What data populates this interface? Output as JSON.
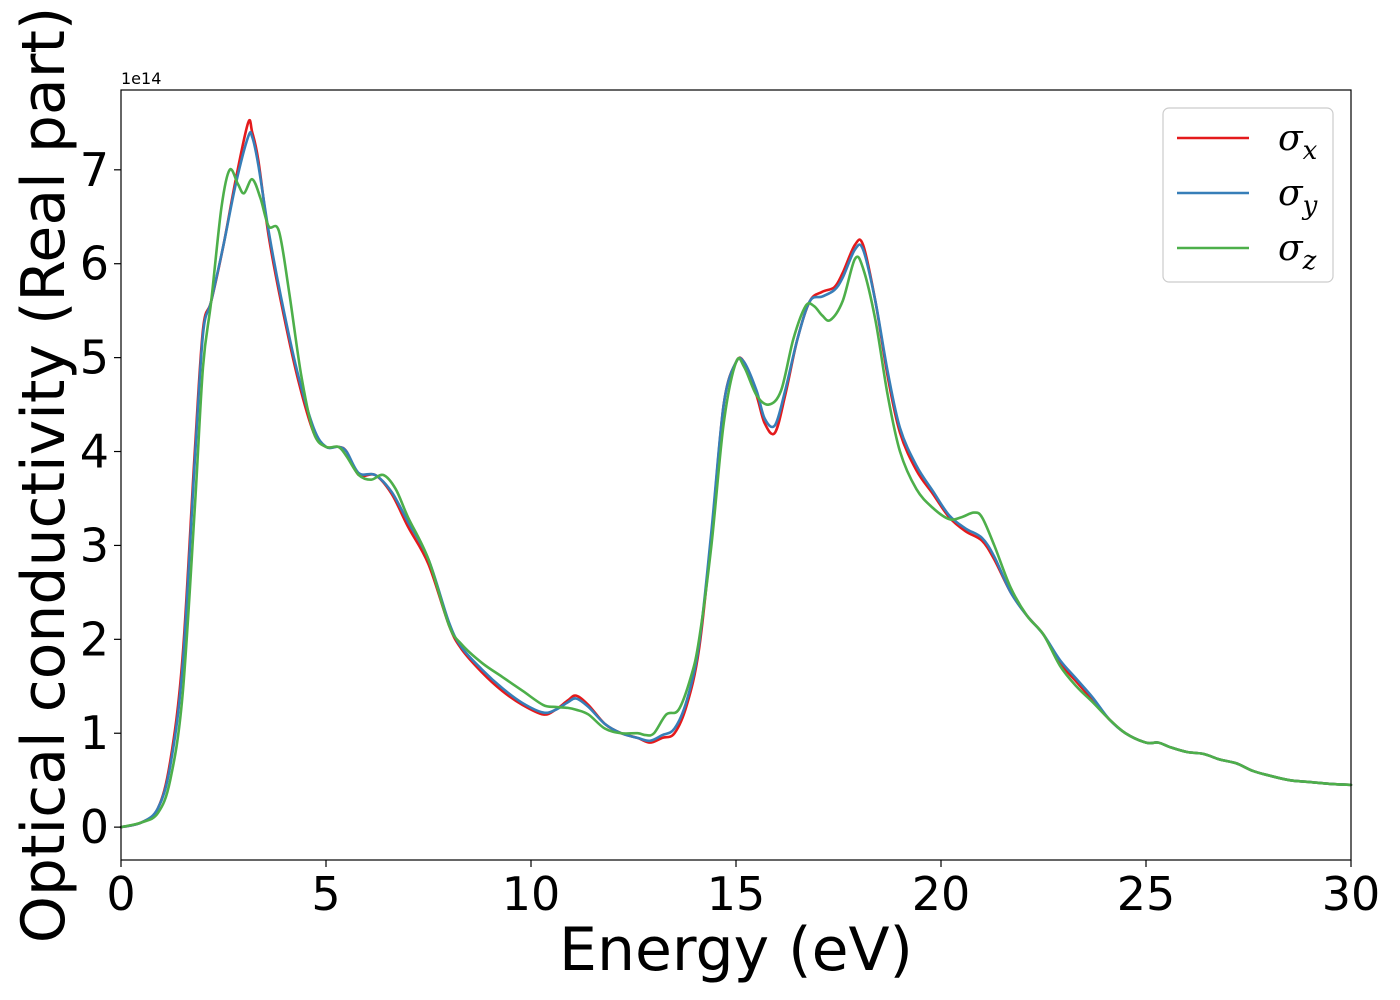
{
  "chart_data": {
    "type": "line",
    "title": "",
    "xlabel": "Energy (eV)",
    "ylabel": "Optical conductivity (Real part)",
    "y_offset_label": "1e14",
    "xlim": [
      0,
      30
    ],
    "ylim": [
      -0.35,
      7.85
    ],
    "xticks": [
      0,
      5,
      10,
      15,
      20,
      25,
      30
    ],
    "xtick_labels": [
      "0",
      "5",
      "10",
      "15",
      "20",
      "25",
      "30"
    ],
    "yticks": [
      0,
      1,
      2,
      3,
      4,
      5,
      6,
      7
    ],
    "ytick_labels": [
      "0",
      "1",
      "2",
      "3",
      "4",
      "5",
      "6",
      "7"
    ],
    "grid": false,
    "legend_position": "top-right",
    "series": [
      {
        "name": "σ",
        "subscript": "x",
        "color": "#e41a1c",
        "x": [
          0,
          0.5,
          0.9,
          1.2,
          1.5,
          1.8,
          2.0,
          2.2,
          2.5,
          2.8,
          3.1,
          3.2,
          3.35,
          3.6,
          3.9,
          4.3,
          4.7,
          5.0,
          5.3,
          5.5,
          5.8,
          6.2,
          6.6,
          7.0,
          7.5,
          8.0,
          8.3,
          8.8,
          9.3,
          9.8,
          10.3,
          10.6,
          10.9,
          11.1,
          11.4,
          11.8,
          12.2,
          12.6,
          12.9,
          13.2,
          13.5,
          13.8,
          14.1,
          14.4,
          14.7,
          15.0,
          15.2,
          15.5,
          15.7,
          15.95,
          16.2,
          16.5,
          16.8,
          17.1,
          17.4,
          17.6,
          17.9,
          18.1,
          18.4,
          18.7,
          19.0,
          19.4,
          19.8,
          20.2,
          20.6,
          21.0,
          21.3,
          21.7,
          22.1,
          22.5,
          22.9,
          23.3,
          23.7,
          24.1,
          24.5,
          25.0,
          25.3,
          25.6,
          26.0,
          26.4,
          26.8,
          27.2,
          27.6,
          28.0,
          28.5,
          29.0,
          29.5,
          30.0
        ],
        "y": [
          0,
          0.05,
          0.2,
          0.7,
          1.8,
          4.0,
          5.3,
          5.6,
          6.2,
          6.9,
          7.5,
          7.4,
          7.1,
          6.3,
          5.6,
          4.8,
          4.2,
          4.05,
          4.05,
          4.0,
          3.75,
          3.75,
          3.55,
          3.2,
          2.8,
          2.15,
          1.9,
          1.65,
          1.45,
          1.3,
          1.2,
          1.25,
          1.35,
          1.4,
          1.3,
          1.1,
          1.0,
          0.95,
          0.9,
          0.95,
          1.0,
          1.3,
          1.9,
          3.1,
          4.5,
          4.95,
          4.95,
          4.6,
          4.3,
          4.2,
          4.6,
          5.2,
          5.6,
          5.7,
          5.75,
          5.9,
          6.2,
          6.2,
          5.6,
          4.8,
          4.2,
          3.8,
          3.55,
          3.3,
          3.15,
          3.05,
          2.85,
          2.5,
          2.25,
          2.05,
          1.75,
          1.55,
          1.35,
          1.15,
          1.0,
          0.9,
          0.9,
          0.85,
          0.8,
          0.78,
          0.72,
          0.68,
          0.6,
          0.55,
          0.5,
          0.48,
          0.46,
          0.45
        ]
      },
      {
        "name": "σ",
        "subscript": "y",
        "color": "#377eb8",
        "x": [
          0,
          0.5,
          0.9,
          1.2,
          1.5,
          1.8,
          2.0,
          2.2,
          2.5,
          2.8,
          3.1,
          3.2,
          3.35,
          3.6,
          3.9,
          4.3,
          4.7,
          5.0,
          5.3,
          5.5,
          5.8,
          6.2,
          6.6,
          7.0,
          7.5,
          8.0,
          8.3,
          8.8,
          9.3,
          9.8,
          10.3,
          10.6,
          10.9,
          11.1,
          11.4,
          11.8,
          12.2,
          12.6,
          12.9,
          13.2,
          13.5,
          13.8,
          14.1,
          14.4,
          14.7,
          15.0,
          15.2,
          15.5,
          15.7,
          15.95,
          16.2,
          16.5,
          16.8,
          17.1,
          17.4,
          17.6,
          17.9,
          18.1,
          18.4,
          18.7,
          19.0,
          19.4,
          19.8,
          20.2,
          20.6,
          21.0,
          21.3,
          21.7,
          22.1,
          22.5,
          22.9,
          23.3,
          23.7,
          24.1,
          24.5,
          25.0,
          25.3,
          25.6,
          26.0,
          26.4,
          26.8,
          27.2,
          27.6,
          28.0,
          28.5,
          29.0,
          29.5,
          30.0
        ],
        "y": [
          0,
          0.05,
          0.2,
          0.65,
          1.7,
          3.9,
          5.25,
          5.6,
          6.2,
          6.85,
          7.35,
          7.35,
          7.05,
          6.35,
          5.65,
          4.85,
          4.25,
          4.05,
          4.05,
          4.0,
          3.77,
          3.75,
          3.57,
          3.25,
          2.85,
          2.18,
          1.92,
          1.68,
          1.48,
          1.32,
          1.22,
          1.25,
          1.33,
          1.37,
          1.28,
          1.1,
          1.0,
          0.95,
          0.92,
          0.98,
          1.05,
          1.35,
          1.95,
          3.15,
          4.5,
          4.95,
          4.95,
          4.65,
          4.35,
          4.28,
          4.65,
          5.2,
          5.6,
          5.65,
          5.72,
          5.85,
          6.15,
          6.15,
          5.6,
          4.85,
          4.25,
          3.85,
          3.58,
          3.32,
          3.18,
          3.08,
          2.88,
          2.5,
          2.25,
          2.05,
          1.78,
          1.58,
          1.38,
          1.15,
          1.0,
          0.9,
          0.9,
          0.85,
          0.8,
          0.78,
          0.72,
          0.68,
          0.6,
          0.55,
          0.5,
          0.48,
          0.46,
          0.45
        ]
      },
      {
        "name": "σ",
        "subscript": "z",
        "color": "#4daf4a",
        "x": [
          0,
          0.5,
          0.9,
          1.2,
          1.5,
          1.8,
          2.0,
          2.2,
          2.45,
          2.65,
          2.85,
          3.0,
          3.2,
          3.4,
          3.6,
          3.85,
          4.1,
          4.4,
          4.7,
          5.0,
          5.3,
          5.5,
          5.8,
          6.1,
          6.4,
          6.7,
          7.0,
          7.5,
          8.0,
          8.3,
          8.8,
          9.3,
          9.8,
          10.3,
          10.6,
          10.9,
          11.1,
          11.4,
          11.8,
          12.2,
          12.6,
          12.8,
          13.0,
          13.3,
          13.6,
          13.9,
          14.1,
          14.4,
          14.7,
          15.0,
          15.2,
          15.5,
          15.8,
          16.1,
          16.4,
          16.7,
          16.9,
          17.1,
          17.3,
          17.6,
          17.9,
          18.1,
          18.4,
          18.7,
          19.0,
          19.4,
          19.8,
          20.2,
          20.5,
          20.8,
          21.0,
          21.3,
          21.7,
          22.1,
          22.5,
          22.9,
          23.3,
          23.7,
          24.1,
          24.5,
          25.0,
          25.3,
          25.6,
          26.0,
          26.4,
          26.8,
          27.2,
          27.6,
          28.0,
          28.5,
          29.0,
          29.5,
          30.0
        ],
        "y": [
          0,
          0.05,
          0.15,
          0.5,
          1.4,
          3.4,
          4.9,
          5.6,
          6.6,
          7.0,
          6.85,
          6.75,
          6.9,
          6.7,
          6.4,
          6.35,
          5.7,
          4.8,
          4.2,
          4.05,
          4.05,
          3.95,
          3.75,
          3.7,
          3.75,
          3.6,
          3.3,
          2.85,
          2.15,
          1.95,
          1.75,
          1.6,
          1.45,
          1.3,
          1.28,
          1.27,
          1.25,
          1.2,
          1.05,
          1.0,
          1.0,
          0.98,
          1.0,
          1.2,
          1.25,
          1.6,
          2.0,
          3.0,
          4.3,
          4.95,
          4.9,
          4.6,
          4.5,
          4.65,
          5.2,
          5.55,
          5.55,
          5.45,
          5.4,
          5.6,
          6.05,
          5.95,
          5.4,
          4.6,
          4.0,
          3.6,
          3.4,
          3.28,
          3.3,
          3.35,
          3.3,
          3.0,
          2.55,
          2.25,
          2.05,
          1.72,
          1.5,
          1.33,
          1.15,
          1.0,
          0.9,
          0.9,
          0.85,
          0.8,
          0.78,
          0.72,
          0.68,
          0.6,
          0.55,
          0.5,
          0.48,
          0.46,
          0.45
        ]
      }
    ]
  }
}
